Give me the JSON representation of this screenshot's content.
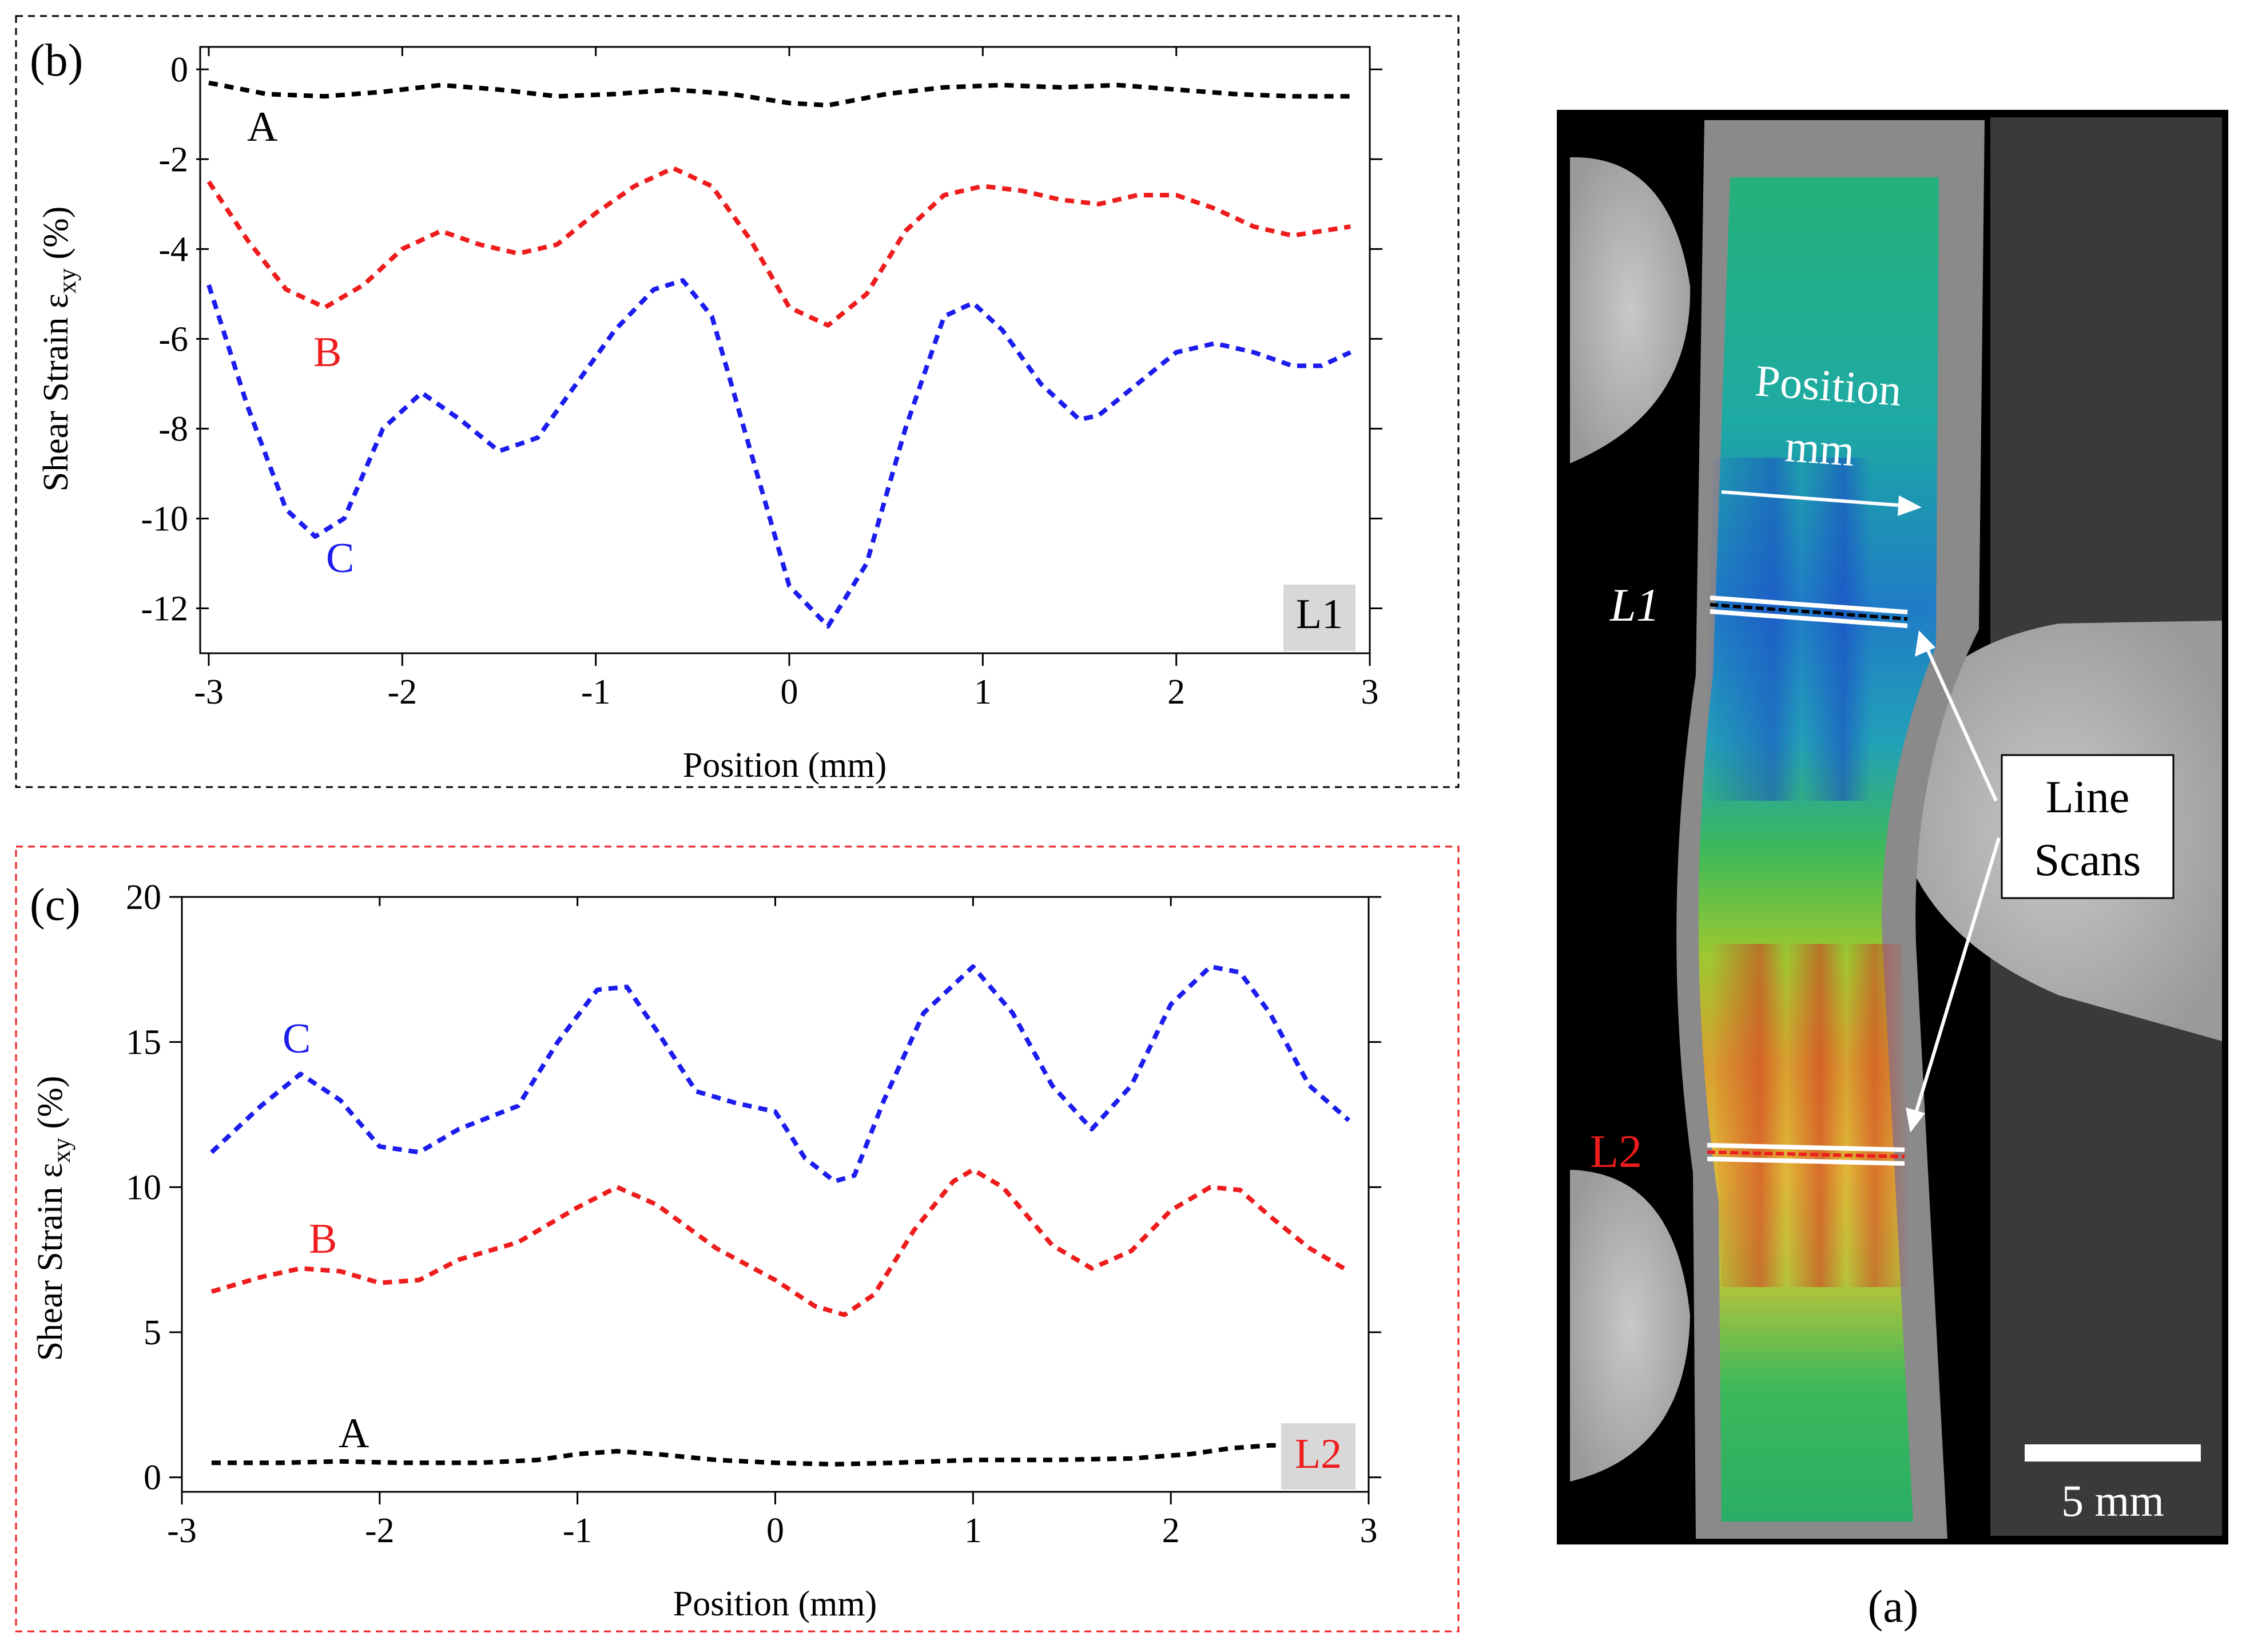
{
  "colors": {
    "A": "#000000",
    "B": "#ee1c1c",
    "C": "#1c1cee",
    "frame_b": "#000000",
    "frame_c": "#ee1c1c"
  },
  "chart_data": [
    {
      "type": "line",
      "panel": "(b)",
      "tag": "L1",
      "xlabel": "Position (mm)",
      "ylabel_main": "Shear Strain ε",
      "ylabel_sub": "xy",
      "ylabel_tail": " (%)",
      "xlim": [
        -3,
        3
      ],
      "ylim": [
        -13,
        0.5
      ],
      "xticks": [
        -3,
        -2,
        -1,
        0,
        1,
        2,
        3
      ],
      "xtick_labels": [
        "-3",
        "-2",
        "-1",
        "0",
        "1",
        "2",
        "3"
      ],
      "yticks": [
        0,
        -2,
        -4,
        -6,
        -8,
        -10,
        -12
      ],
      "ytick_labels": [
        "0",
        "-2",
        "-4",
        "-6",
        "-8",
        "-10",
        "-12"
      ],
      "series": [
        {
          "name": "A",
          "color": "#000000",
          "x": [
            -3.0,
            -2.7,
            -2.4,
            -2.1,
            -1.8,
            -1.5,
            -1.2,
            -0.9,
            -0.6,
            -0.3,
            0.0,
            0.2,
            0.5,
            0.8,
            1.1,
            1.4,
            1.7,
            2.0,
            2.3,
            2.6,
            2.9
          ],
          "y": [
            -0.3,
            -0.55,
            -0.6,
            -0.5,
            -0.35,
            -0.45,
            -0.6,
            -0.55,
            -0.45,
            -0.55,
            -0.75,
            -0.8,
            -0.55,
            -0.4,
            -0.35,
            -0.4,
            -0.35,
            -0.45,
            -0.55,
            -0.6,
            -0.6
          ]
        },
        {
          "name": "B",
          "color": "#ee1c1c",
          "x": [
            -3.0,
            -2.8,
            -2.6,
            -2.4,
            -2.2,
            -2.0,
            -1.8,
            -1.6,
            -1.4,
            -1.2,
            -1.0,
            -0.8,
            -0.6,
            -0.4,
            -0.2,
            0.0,
            0.2,
            0.4,
            0.6,
            0.8,
            1.0,
            1.2,
            1.4,
            1.6,
            1.8,
            2.0,
            2.2,
            2.4,
            2.6,
            2.9
          ],
          "y": [
            -2.5,
            -3.8,
            -4.9,
            -5.3,
            -4.8,
            -4.0,
            -3.6,
            -3.9,
            -4.1,
            -3.9,
            -3.2,
            -2.6,
            -2.2,
            -2.6,
            -3.8,
            -5.3,
            -5.7,
            -5.0,
            -3.6,
            -2.8,
            -2.6,
            -2.7,
            -2.9,
            -3.0,
            -2.8,
            -2.8,
            -3.1,
            -3.5,
            -3.7,
            -3.5
          ]
        },
        {
          "name": "C",
          "color": "#1c1cee",
          "x": [
            -3.0,
            -2.8,
            -2.6,
            -2.45,
            -2.3,
            -2.1,
            -1.9,
            -1.7,
            -1.5,
            -1.3,
            -1.1,
            -0.9,
            -0.7,
            -0.55,
            -0.4,
            -0.2,
            0.0,
            0.2,
            0.4,
            0.6,
            0.8,
            0.95,
            1.1,
            1.3,
            1.5,
            1.6,
            1.8,
            2.0,
            2.2,
            2.4,
            2.6,
            2.75,
            2.9
          ],
          "y": [
            -4.8,
            -7.5,
            -9.8,
            -10.4,
            -10.0,
            -8.0,
            -7.2,
            -7.8,
            -8.5,
            -8.2,
            -7.0,
            -5.8,
            -4.9,
            -4.7,
            -5.5,
            -8.5,
            -11.5,
            -12.4,
            -11.0,
            -8.0,
            -5.5,
            -5.2,
            -5.8,
            -7.0,
            -7.8,
            -7.7,
            -7.0,
            -6.3,
            -6.1,
            -6.3,
            -6.6,
            -6.6,
            -6.3
          ]
        }
      ]
    },
    {
      "type": "line",
      "panel": "(c)",
      "tag": "L2",
      "xlabel": "Position (mm)",
      "ylabel_main": "Shear Strain ε",
      "ylabel_sub": "xy",
      "ylabel_tail": " (%)",
      "xlim": [
        -3,
        3
      ],
      "ylim": [
        -0.5,
        20
      ],
      "xticks": [
        -3,
        -2,
        -1,
        0,
        1,
        2,
        3
      ],
      "xtick_labels": [
        "-3",
        "-2",
        "-1",
        "0",
        "1",
        "2",
        "3"
      ],
      "yticks": [
        0,
        5,
        10,
        15,
        20
      ],
      "ytick_labels": [
        "0",
        "5",
        "10",
        "15",
        "20"
      ],
      "series": [
        {
          "name": "A",
          "color": "#000000",
          "x": [
            -2.85,
            -2.5,
            -2.2,
            -1.9,
            -1.5,
            -1.2,
            -1.0,
            -0.8,
            -0.6,
            -0.3,
            0.0,
            0.3,
            0.6,
            1.0,
            1.4,
            1.8,
            2.1,
            2.3,
            2.5,
            2.7
          ],
          "y": [
            0.5,
            0.5,
            0.55,
            0.5,
            0.5,
            0.6,
            0.8,
            0.9,
            0.8,
            0.6,
            0.5,
            0.45,
            0.5,
            0.6,
            0.6,
            0.65,
            0.8,
            1.0,
            1.1,
            1.1
          ]
        },
        {
          "name": "B",
          "color": "#ee1c1c",
          "x": [
            -2.85,
            -2.6,
            -2.4,
            -2.2,
            -2.0,
            -1.8,
            -1.6,
            -1.3,
            -1.0,
            -0.8,
            -0.6,
            -0.3,
            0.0,
            0.2,
            0.35,
            0.5,
            0.7,
            0.9,
            1.0,
            1.15,
            1.4,
            1.6,
            1.8,
            2.0,
            2.2,
            2.35,
            2.5,
            2.7,
            2.9
          ],
          "y": [
            6.4,
            6.9,
            7.2,
            7.1,
            6.7,
            6.8,
            7.5,
            8.1,
            9.3,
            10.0,
            9.4,
            7.9,
            6.8,
            5.9,
            5.6,
            6.3,
            8.5,
            10.2,
            10.6,
            10.0,
            8.0,
            7.2,
            7.8,
            9.2,
            10.0,
            9.9,
            9.0,
            7.9,
            7.1
          ]
        },
        {
          "name": "C",
          "color": "#1c1cee",
          "x": [
            -2.85,
            -2.6,
            -2.4,
            -2.2,
            -2.0,
            -1.8,
            -1.6,
            -1.3,
            -1.1,
            -0.9,
            -0.75,
            -0.6,
            -0.4,
            -0.2,
            0.0,
            0.15,
            0.3,
            0.4,
            0.55,
            0.75,
            1.0,
            1.2,
            1.4,
            1.6,
            1.8,
            2.0,
            2.2,
            2.35,
            2.5,
            2.7,
            2.9
          ],
          "y": [
            11.2,
            12.8,
            13.9,
            13.0,
            11.4,
            11.2,
            12.0,
            12.8,
            15.0,
            16.8,
            16.9,
            15.4,
            13.3,
            12.9,
            12.6,
            11.0,
            10.2,
            10.4,
            13.0,
            16.0,
            17.6,
            16.0,
            13.5,
            12.0,
            13.5,
            16.3,
            17.6,
            17.4,
            16.0,
            13.5,
            12.3
          ]
        }
      ]
    }
  ],
  "labels": {
    "panel_b": "(b)",
    "panel_c": "(c)",
    "panel_a": "(a)",
    "b_A": "A",
    "b_B": "B",
    "b_C": "C",
    "c_A": "A",
    "c_B": "B",
    "c_C": "C",
    "tag_L1": "L1",
    "tag_L2": "L2"
  },
  "photo": {
    "position_line1": "Position",
    "position_line2": "mm",
    "l1": "L1",
    "l2": "L2",
    "callout_line1": "Line",
    "callout_line2": "Scans",
    "scale_bar": "5 mm"
  }
}
